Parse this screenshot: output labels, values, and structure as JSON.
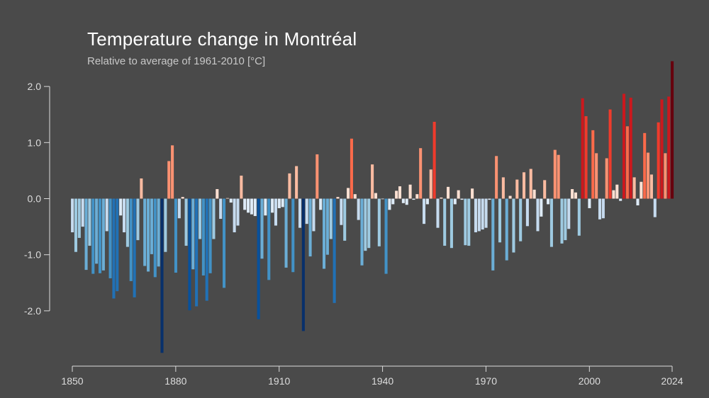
{
  "chart_data": {
    "type": "bar",
    "title": "Temperature change in Montréal",
    "subtitle": "Relative to average of 1961-2010  [°C]",
    "x_start": 1850,
    "x_end": 2024,
    "xticks": [
      1850,
      1880,
      1910,
      1940,
      1970,
      2000,
      2024
    ],
    "yticks": [
      -2.0,
      -1.0,
      0.0,
      1.0,
      2.0
    ],
    "ytick_labels": [
      "-2.0",
      "-1.0",
      "0.0",
      "1.0",
      "2.0"
    ],
    "ylim": [
      -2.85,
      2.55
    ],
    "grid": false,
    "legend": "none",
    "colors": {
      "background": "#4a4a4a",
      "axis": "#dcdcdc",
      "title": "#ffffff",
      "subtitle": "#c8c8c8",
      "scale": [
        "#08306b",
        "#08519c",
        "#2171b5",
        "#4292c6",
        "#6baed6",
        "#9ecae1",
        "#c6dbef",
        "#deebf7",
        "#fee0d2",
        "#fcbba1",
        "#fc9272",
        "#fb6a4a",
        "#ef3b2c",
        "#cb181d",
        "#a50f15",
        "#67000d"
      ]
    },
    "values": [
      -0.6,
      -0.95,
      -0.7,
      -0.5,
      -1.27,
      -0.84,
      -1.34,
      -1.16,
      -1.33,
      -1.28,
      -0.58,
      -1.42,
      -1.78,
      -1.65,
      -0.3,
      -0.6,
      -0.86,
      -1.47,
      -1.76,
      -0.74,
      0.36,
      -1.2,
      -1.3,
      -0.99,
      -1.4,
      -1.21,
      -2.75,
      -0.95,
      0.67,
      0.95,
      -1.32,
      -0.35,
      0.03,
      -0.84,
      -1.99,
      -1.26,
      -1.92,
      -0.72,
      -1.37,
      -1.82,
      -1.33,
      -0.72,
      0.17,
      -0.36,
      -1.59,
      0.01,
      -0.07,
      -0.6,
      -0.48,
      0.41,
      -0.2,
      -0.25,
      -0.28,
      -0.31,
      -2.15,
      -1.07,
      -0.3,
      -1.45,
      -0.25,
      -0.48,
      -0.17,
      -0.15,
      -1.23,
      0.45,
      -1.31,
      0.58,
      -0.52,
      -2.36,
      -0.45,
      -1.03,
      -0.58,
      0.79,
      -0.2,
      -1.25,
      -1.0,
      -0.72,
      -1.86,
      0.03,
      -0.47,
      -0.75,
      0.19,
      1.07,
      0.08,
      -0.38,
      -1.19,
      -0.93,
      -0.88,
      0.61,
      0.1,
      -0.85,
      -0.01,
      -1.34,
      -0.2,
      -0.1,
      0.14,
      0.22,
      -0.08,
      -0.11,
      0.25,
      -0.02,
      0.08,
      0.9,
      -0.45,
      -0.1,
      0.52,
      1.37,
      -0.52,
      0.02,
      -0.84,
      0.21,
      -0.88,
      -0.1,
      0.15,
      -0.02,
      -0.83,
      -0.84,
      0.18,
      -0.6,
      -0.58,
      -0.55,
      -0.52,
      -0.02,
      -1.28,
      0.76,
      -0.78,
      0.38,
      -1.1,
      0.05,
      -0.96,
      0.34,
      -0.76,
      0.47,
      -0.49,
      0.53,
      0.16,
      -0.58,
      -0.32,
      0.33,
      -0.1,
      -0.86,
      0.87,
      0.78,
      -0.8,
      -0.74,
      -0.54,
      0.17,
      0.11,
      -0.66,
      1.79,
      1.47,
      -0.17,
      1.22,
      0.81,
      -0.37,
      -0.35,
      0.72,
      1.59,
      0.15,
      0.25,
      -0.04,
      1.87,
      1.29,
      1.8,
      0.38,
      -0.12,
      0.3,
      1.17,
      0.82,
      0.43,
      -0.33,
      1.36,
      1.77,
      0.81,
      1.82,
      2.45
    ]
  }
}
